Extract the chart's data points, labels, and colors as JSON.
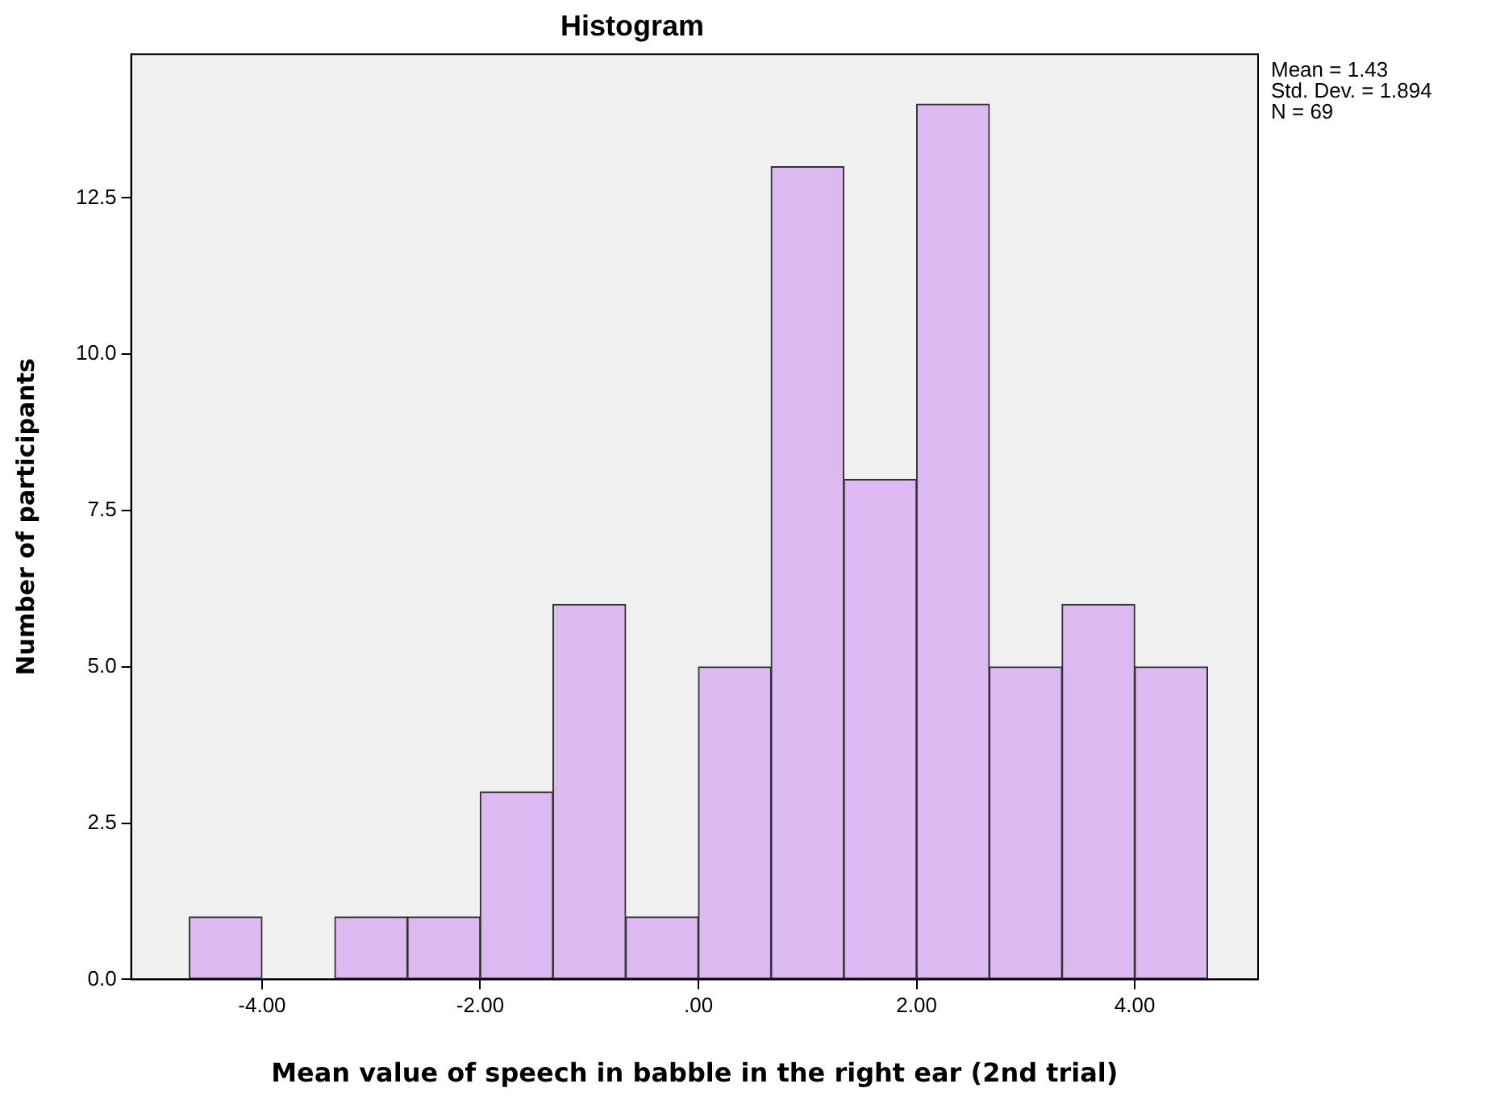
{
  "chart_data": {
    "type": "histogram",
    "title": "Histogram",
    "xlabel": "Mean value of speech in babble in the right ear (2nd trial)",
    "ylabel": "Number of participants",
    "bins": [
      -4.667,
      -4,
      -3.333,
      -2.667,
      -2,
      -1.333,
      -0.667,
      0,
      0.667,
      1.333,
      2,
      2.667,
      3.333,
      4,
      4.667
    ],
    "values": [
      1,
      0,
      1,
      1,
      3,
      6,
      1,
      5,
      13,
      8,
      14,
      5,
      6,
      5
    ],
    "color": "#dcb9f0",
    "xlim": [
      -5.2,
      5.13
    ],
    "xticks": [
      {
        "value": -4,
        "label": "-4.00"
      },
      {
        "value": -2,
        "label": "-2.00"
      },
      {
        "value": 0,
        "label": ".00"
      },
      {
        "value": 2,
        "label": "2.00"
      },
      {
        "value": 4,
        "label": "4.00"
      }
    ],
    "ylim": [
      0,
      14.8
    ],
    "yticks": [
      {
        "value": 0,
        "label": "0.0"
      },
      {
        "value": 2.5,
        "label": "2.5"
      },
      {
        "value": 5,
        "label": "5.0"
      },
      {
        "value": 7.5,
        "label": "7.5"
      },
      {
        "value": 10,
        "label": "10.0"
      },
      {
        "value": 12.5,
        "label": "12.5"
      }
    ],
    "grid": false,
    "legend": false,
    "annotations": [
      "Mean = 1.43\nStd. Dev. = 1.894\nN = 69"
    ]
  }
}
